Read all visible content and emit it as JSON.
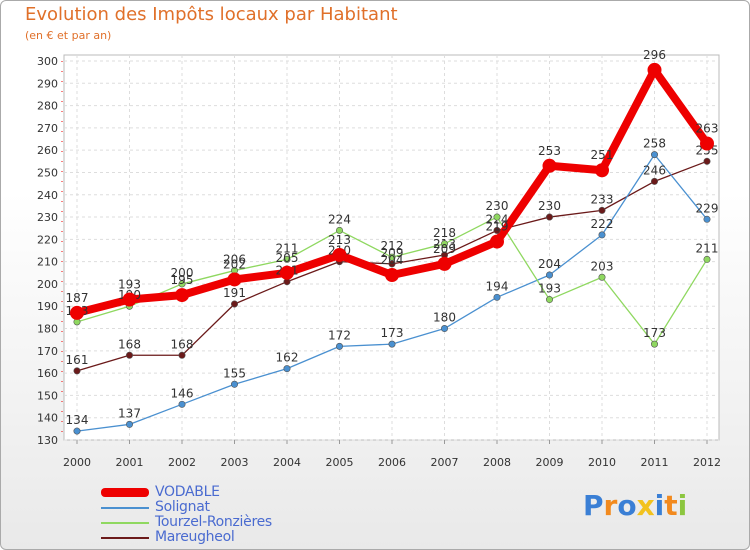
{
  "header": {
    "title": "Evolution des Impôts locaux par Habitant",
    "subtitle": "(en € et par an)"
  },
  "chart_data": {
    "type": "line",
    "title": "Evolution des Impôts locaux par Habitant",
    "subtitle": "(en € et par an)",
    "xlabel": "",
    "ylabel": "",
    "ylim": [
      130,
      300
    ],
    "y_ticks": [
      130,
      140,
      150,
      160,
      170,
      180,
      190,
      200,
      210,
      220,
      230,
      240,
      250,
      260,
      270,
      280,
      290,
      300
    ],
    "categories": [
      "2000",
      "2001",
      "2002",
      "2003",
      "2004",
      "2005",
      "2006",
      "2007",
      "2008",
      "2009",
      "2010",
      "2011",
      "2012"
    ],
    "grid": true,
    "legend_position": "bottom-left",
    "series": [
      {
        "name": "Mareugheol",
        "color": "#6b1a1a",
        "values": [
          161,
          168,
          168,
          191,
          201,
          210,
          209,
          213,
          224,
          230,
          233,
          246,
          255
        ]
      },
      {
        "name": "Solignat",
        "color": "#4a90d0",
        "values": [
          134,
          137,
          146,
          155,
          162,
          172,
          173,
          180,
          194,
          204,
          222,
          258,
          229
        ]
      },
      {
        "name": "Tourzel-Ronzières",
        "color": "#8fd860",
        "values": [
          183,
          190,
          200,
          206,
          211,
          224,
          212,
          218,
          230,
          193,
          203,
          173,
          211
        ]
      },
      {
        "name": "VODABLE",
        "color": "#ee0000",
        "values": [
          187,
          193,
          195,
          202,
          205,
          213,
          204,
          209,
          219,
          253,
          251,
          296,
          263
        ]
      }
    ]
  },
  "legend": {
    "items": [
      {
        "label": "VODABLE",
        "color": "#ee0000"
      },
      {
        "label": "Solignat",
        "color": "#4a90d0"
      },
      {
        "label": "Tourzel-Ronzières",
        "color": "#8fd860"
      },
      {
        "label": "Mareugheol",
        "color": "#6b1a1a"
      }
    ]
  },
  "brand": {
    "letters": [
      "P",
      "r",
      "o",
      "x",
      "i",
      "t",
      "i"
    ],
    "colors": [
      "#3a7fd5",
      "#f28a1e",
      "#3a7fd5",
      "#f2c21e",
      "#3a7fd5",
      "#f28a1e",
      "#8cc63f"
    ]
  }
}
